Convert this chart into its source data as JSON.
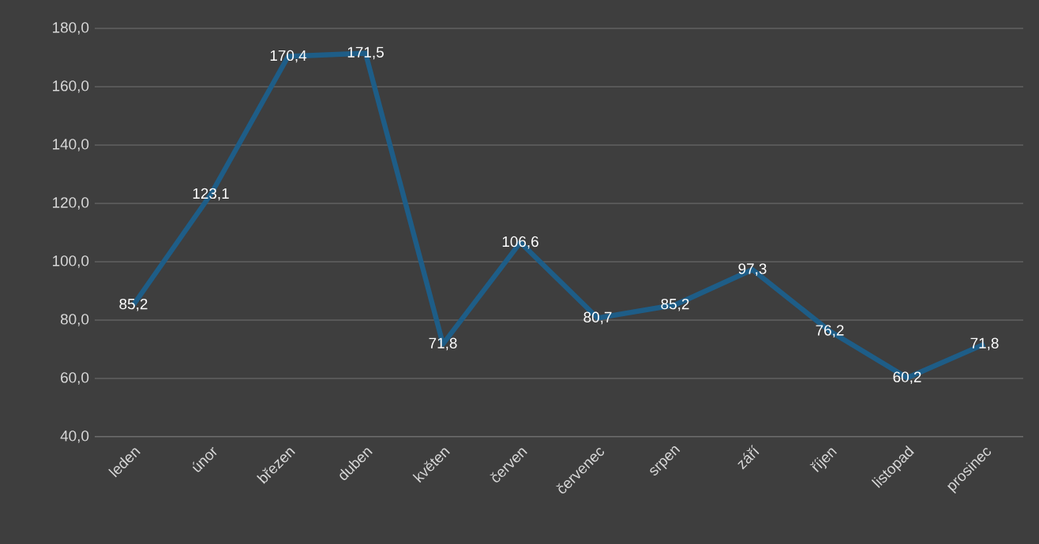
{
  "chart_data": {
    "type": "line",
    "categories": [
      "leden",
      "únor",
      "březen",
      "duben",
      "květen",
      "červen",
      "červenec",
      "srpen",
      "září",
      "říjen",
      "listopad",
      "prosinec"
    ],
    "series": [
      {
        "color": "#1e5d87",
        "values": [
          85.2,
          123.1,
          170.4,
          171.5,
          71.8,
          106.6,
          80.7,
          85.2,
          97.3,
          76.2,
          60.2,
          71.8
        ],
        "value_labels": [
          "85,2",
          "123,1",
          "170,4",
          "171,5",
          "71,8",
          "106,6",
          "80,7",
          "85,2",
          "97,3",
          "76,2",
          "60,2",
          "71,8"
        ]
      }
    ],
    "ylim": [
      40,
      180
    ],
    "yticks": [
      {
        "value": 40,
        "label": "40,0"
      },
      {
        "value": 60,
        "label": "60,0"
      },
      {
        "value": 80,
        "label": "80,0"
      },
      {
        "value": 100,
        "label": "100,0"
      },
      {
        "value": 120,
        "label": "120,0"
      },
      {
        "value": 140,
        "label": "140,0"
      },
      {
        "value": 160,
        "label": "160,0"
      },
      {
        "value": 180,
        "label": "180,0"
      }
    ],
    "grid": "y",
    "marker": "none",
    "line_style": "solid"
  }
}
